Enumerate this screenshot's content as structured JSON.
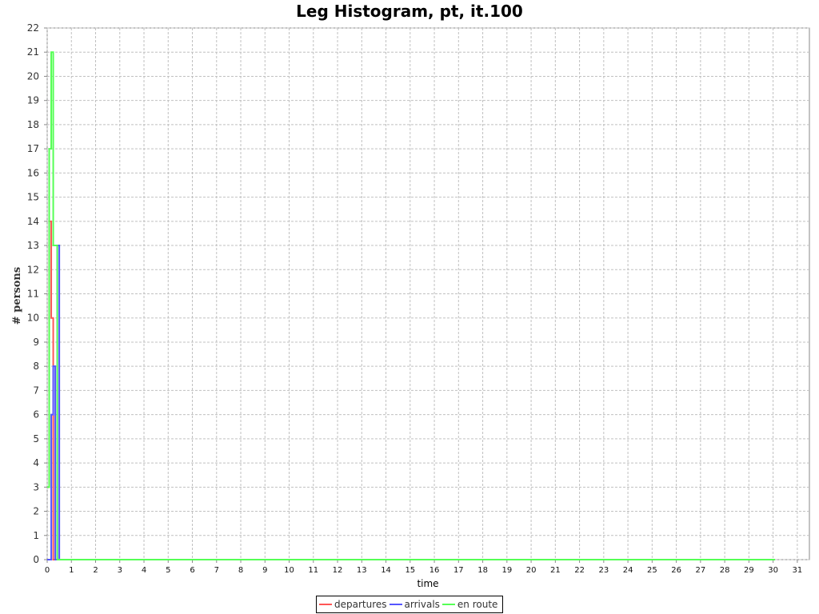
{
  "chart_data": {
    "type": "line",
    "title": "Leg Histogram, pt, it.100",
    "xlabel": "time",
    "ylabel": "# persons",
    "xlim": [
      0,
      31.5
    ],
    "ylim": [
      0,
      22
    ],
    "xticks": [
      0,
      1,
      2,
      3,
      4,
      5,
      6,
      7,
      8,
      9,
      10,
      11,
      12,
      13,
      14,
      15,
      16,
      17,
      18,
      19,
      20,
      21,
      22,
      23,
      24,
      25,
      26,
      27,
      28,
      29,
      30,
      31
    ],
    "yticks": [
      0,
      1,
      2,
      3,
      4,
      5,
      6,
      7,
      8,
      9,
      10,
      11,
      12,
      13,
      14,
      15,
      16,
      17,
      18,
      19,
      20,
      21,
      22
    ],
    "grid": true,
    "legend_position": "bottom",
    "series": [
      {
        "name": "departures",
        "color": "#ff5555",
        "x": [
          0,
          0.0833,
          0.0833,
          0.1667,
          0.1667,
          0.25,
          0.25,
          30.08
        ],
        "y": [
          3,
          3,
          14,
          14,
          10,
          10,
          0,
          0
        ]
      },
      {
        "name": "arrivals",
        "color": "#5555ff",
        "x": [
          0,
          0.1667,
          0.1667,
          0.25,
          0.25,
          0.3333,
          0.3333,
          0.4167,
          0.4167,
          0.5,
          0.5,
          30.08
        ],
        "y": [
          0,
          0,
          6,
          6,
          8,
          8,
          0,
          0,
          13,
          13,
          0,
          0
        ]
      },
      {
        "name": "en route",
        "color": "#55ff55",
        "x": [
          0,
          0.0833,
          0.0833,
          0.1667,
          0.1667,
          0.25,
          0.25,
          0.3333,
          0.3333,
          0.4167,
          0.4167,
          0.5,
          0.5,
          30.08
        ],
        "y": [
          3,
          3,
          17,
          17,
          21,
          21,
          13,
          13,
          13,
          13,
          0,
          0,
          0,
          0
        ]
      }
    ]
  }
}
